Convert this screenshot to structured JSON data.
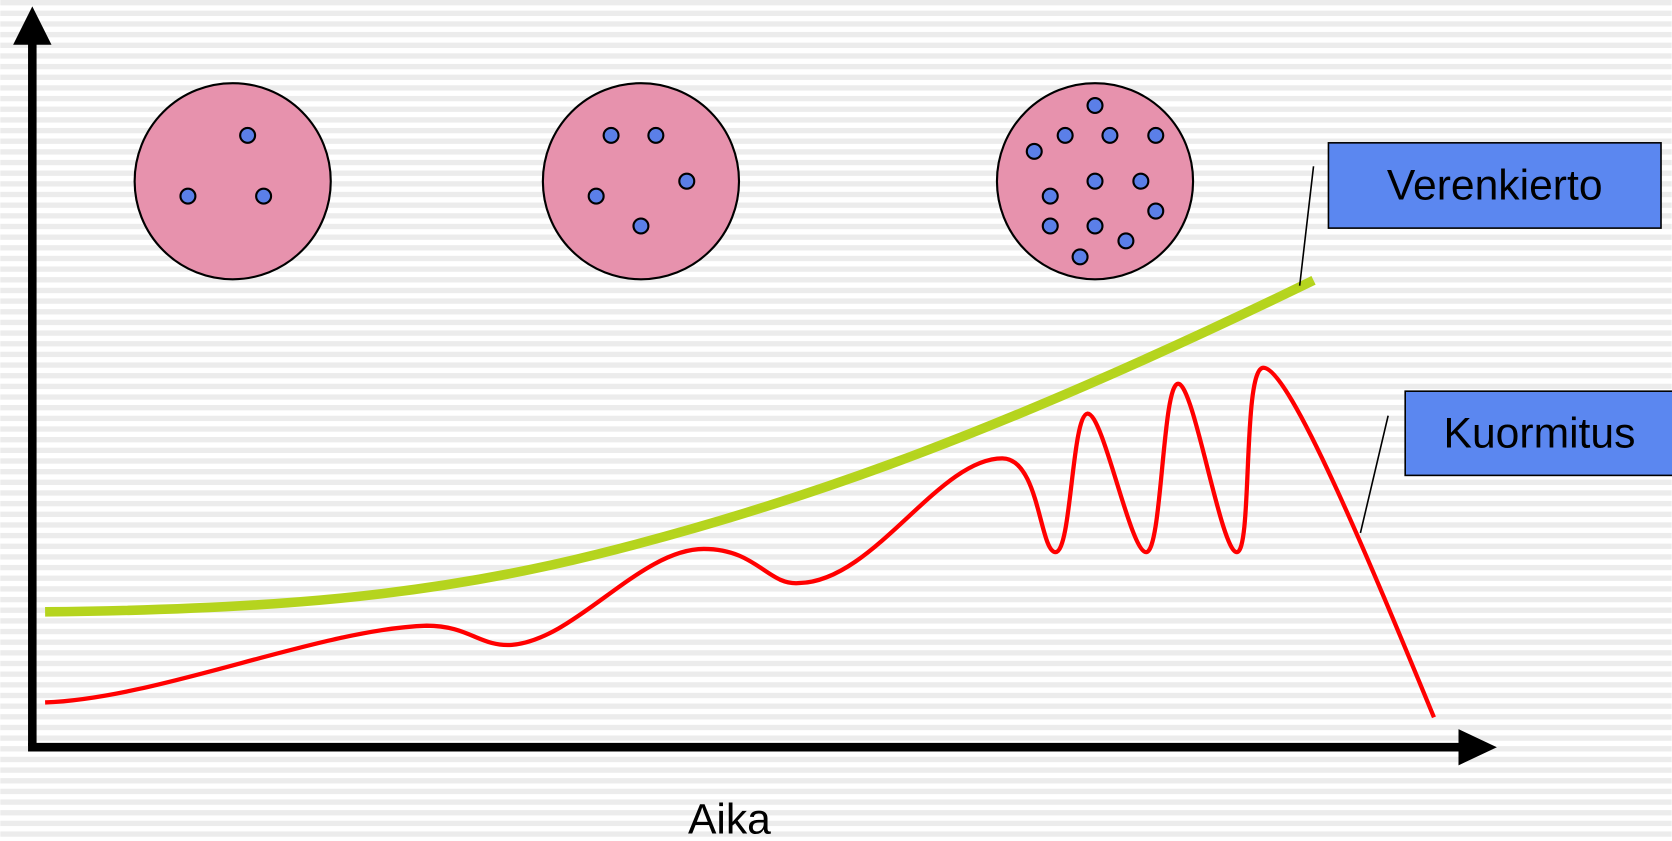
{
  "labels": {
    "circulation": "Verenkierto",
    "load": "Kuormitus"
  },
  "x_axis_label": "Aika"
}
